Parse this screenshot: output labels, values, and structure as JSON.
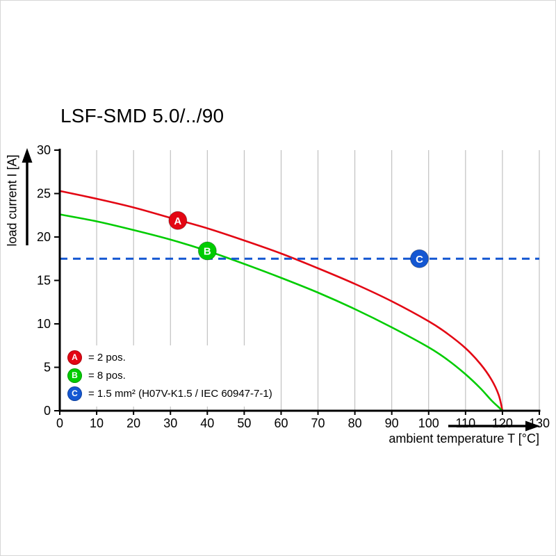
{
  "chart_data": {
    "type": "line",
    "title": "LSF-SMD 5.0/../90",
    "xlabel": "ambient temperature T [°C]",
    "ylabel": "load current I [A]",
    "xlim": [
      0,
      130
    ],
    "ylim": [
      0,
      30
    ],
    "xticks": [
      0,
      10,
      20,
      30,
      40,
      50,
      60,
      70,
      80,
      90,
      100,
      110,
      120,
      130
    ],
    "yticks": [
      0,
      5,
      10,
      15,
      20,
      25,
      30
    ],
    "grid": "vertical",
    "grid_color": "#b5b5b5",
    "axis_color": "#000000",
    "series": [
      {
        "name": "A",
        "label": "2 pos.",
        "color": "#e30613",
        "style": "solid",
        "points": [
          [
            0,
            25.3
          ],
          [
            10,
            24.4
          ],
          [
            20,
            23.4
          ],
          [
            30,
            22.2
          ],
          [
            40,
            21.0
          ],
          [
            50,
            19.6
          ],
          [
            60,
            18.1
          ],
          [
            70,
            16.4
          ],
          [
            80,
            14.6
          ],
          [
            90,
            12.6
          ],
          [
            100,
            10.3
          ],
          [
            105,
            8.9
          ],
          [
            110,
            7.2
          ],
          [
            114,
            5.4
          ],
          [
            117,
            3.6
          ],
          [
            119,
            1.8
          ],
          [
            120,
            0
          ]
        ]
      },
      {
        "name": "B",
        "label": "8 pos.",
        "color": "#00cc00",
        "style": "solid",
        "points": [
          [
            0,
            22.6
          ],
          [
            10,
            21.8
          ],
          [
            20,
            20.8
          ],
          [
            30,
            19.7
          ],
          [
            40,
            18.4
          ],
          [
            50,
            16.9
          ],
          [
            60,
            15.3
          ],
          [
            70,
            13.6
          ],
          [
            80,
            11.7
          ],
          [
            90,
            9.6
          ],
          [
            100,
            7.3
          ],
          [
            105,
            5.9
          ],
          [
            110,
            4.2
          ],
          [
            114,
            2.6
          ],
          [
            117,
            1.2
          ],
          [
            119,
            0.4
          ],
          [
            120,
            0
          ]
        ]
      },
      {
        "name": "C",
        "label": "1.5 mm² (H07V-K1.5 / IEC 60947-7-1)",
        "color": "#1457d2",
        "style": "dashed",
        "points": [
          [
            0,
            17.5
          ],
          [
            130,
            17.5
          ]
        ]
      }
    ],
    "markers": [
      {
        "letter": "A",
        "x": 32,
        "y": 21.9,
        "color": "#e30613"
      },
      {
        "letter": "B",
        "x": 40,
        "y": 18.4,
        "color": "#00cc00"
      },
      {
        "letter": "C",
        "x": 97.5,
        "y": 17.5,
        "color": "#1457d2"
      }
    ],
    "legend": [
      {
        "letter": "A",
        "color": "#e30613",
        "text": "= 2 pos."
      },
      {
        "letter": "B",
        "color": "#00cc00",
        "text": "= 8 pos."
      },
      {
        "letter": "C",
        "color": "#1457d2",
        "text": "= 1.5 mm² (H07V-K1.5 / IEC 60947-7-1)"
      }
    ],
    "legend_position": "lower-left"
  }
}
